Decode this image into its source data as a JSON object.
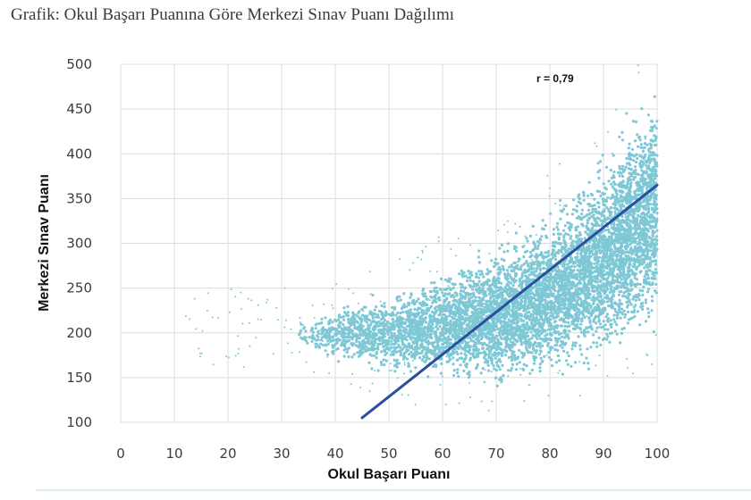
{
  "page_title": "Grafik: Okul Başarı Puanına Göre Merkezi Sınav Puanı Dağılımı",
  "colors": {
    "points": "#7ec8d6",
    "fit_line": "#2b4f9c",
    "grid": "#dcdcdc"
  },
  "chart_data": {
    "type": "scatter",
    "title": "",
    "xlabel": "Okul Başarı Puanı",
    "ylabel": "Merkezi Sınav Puanı",
    "xlim": [
      0,
      100
    ],
    "ylim": [
      100,
      500
    ],
    "x_ticks": [
      0,
      10,
      20,
      30,
      40,
      50,
      60,
      70,
      80,
      90,
      100
    ],
    "y_ticks": [
      100,
      150,
      200,
      250,
      300,
      350,
      400,
      450,
      500
    ],
    "grid": true,
    "annotation": "r = 0,79",
    "density_profile": [
      {
        "x": 35,
        "y_low": 185,
        "y_high": 215
      },
      {
        "x": 40,
        "y_low": 165,
        "y_high": 230
      },
      {
        "x": 45,
        "y_low": 155,
        "y_high": 240
      },
      {
        "x": 50,
        "y_low": 148,
        "y_high": 250
      },
      {
        "x": 55,
        "y_low": 142,
        "y_high": 262
      },
      {
        "x": 60,
        "y_low": 138,
        "y_high": 275
      },
      {
        "x": 65,
        "y_low": 135,
        "y_high": 290
      },
      {
        "x": 70,
        "y_low": 135,
        "y_high": 305
      },
      {
        "x": 75,
        "y_low": 136,
        "y_high": 325
      },
      {
        "x": 80,
        "y_low": 140,
        "y_high": 345
      },
      {
        "x": 85,
        "y_low": 145,
        "y_high": 375
      },
      {
        "x": 90,
        "y_low": 155,
        "y_high": 410
      },
      {
        "x": 95,
        "y_low": 170,
        "y_high": 460
      },
      {
        "x": 100,
        "y_low": 180,
        "y_high": 500
      }
    ],
    "fit_line": {
      "x": [
        45,
        100
      ],
      "y": [
        105,
        365
      ]
    }
  }
}
